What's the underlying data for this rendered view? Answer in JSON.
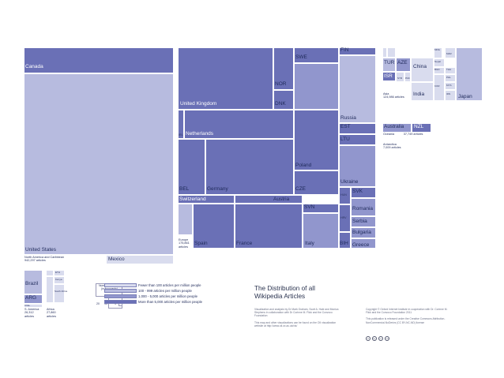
{
  "title": "The Distribution of all Wikipedia Articles",
  "colors": {
    "level1": "#d9dcee",
    "level2": "#b7bbdf",
    "level3": "#9196cd",
    "level4": "#6a70b6"
  },
  "countries": {
    "canada": "Canada",
    "us": "United States",
    "mexico": "Mexico",
    "uk": "United Kingdom",
    "swe": "SWE",
    "fin": "FIN",
    "nor": "NOR",
    "dnk": "DNK",
    "russia": "Russia",
    "est": "EST",
    "ltu": "LTU",
    "irl": "IRL",
    "netherlands": "Netherlands",
    "poland": "Poland",
    "bel": "BEL",
    "germany": "Germany",
    "cze": "CZE",
    "ukraine": "Ukraine",
    "svk": "SVK",
    "hun": "HUN",
    "switzerland": "Switzerland",
    "austria": "Austria",
    "svn": "SVN",
    "romania": "Romania",
    "hrv": "HRV",
    "serbia": "Serbia",
    "bulgaria": "Bulgaria",
    "spain": "Spain",
    "france": "France",
    "italy": "Italy",
    "bih": "BIH",
    "greece": "Greece",
    "tur": "TUR",
    "aze": "AZE",
    "china": "China",
    "isr": "ISR",
    "india": "India",
    "japan": "Japan",
    "australia": "Australia",
    "nzl": "NZL",
    "brazil": "Brazil",
    "arg": "ARG",
    "chile": "Chile",
    "kenya": "Kenya",
    "south_africa": "South Africa",
    "mar": "MAR",
    "eth": "ETH",
    "mng": "MNG",
    "nepal": "Nepal",
    "bgd": "BGD",
    "tha": "THA",
    "syr": "SYR",
    "pak": "PAK",
    "phl": "PHL",
    "mys": "MYS",
    "idn": "IDN",
    "kor": "KOR"
  },
  "regions": {
    "asia_name": "Asia",
    "asia_count": "124,986 articles",
    "oceania_name": "Oceania",
    "oceania_count": "37,749 articles",
    "antarctica_name": "Antarctica",
    "antarctica_count": "7,009 articles",
    "europe_name": "Europe",
    "europe_count": "175,861",
    "europe_unit": "articles",
    "na_name": "North America and Caribbean",
    "na_count": "942,297 articles",
    "sa_name": "S. America",
    "sa_count": "26,312",
    "sa_unit": "articles",
    "africa_name": "Africa",
    "africa_count": "27,860",
    "africa_unit": "articles"
  },
  "legend": {
    "key_title": "Number of articles (in thousands)",
    "scale": [
      "20",
      "10",
      "1"
    ],
    "items": [
      "Fewer than 100 articles per million people",
      "100 - 999 articles per million people",
      "1,000 - 5,000 articles per million people",
      "More than 5,000 articles per million people"
    ]
  },
  "credits": {
    "left_1": "Visualization and analysis by Dr Mark Graham, Scott A. Hale and Monica",
    "left_2": "Stephens in collaboration with Dr Corinne M. Flick and the Convoco",
    "left_3": "Foundation",
    "left_4": "This map and other visualizations can be found on the OII visualization",
    "left_5": "website at http://www.oii.ox.ac.uk/vis/",
    "right_1": "Copyright © Oxford Internet Institute in cooperation with Dr. Corinne M.",
    "right_2": "Flick and the Convoco Foundation 2011",
    "right_3": "This publication is released under the Creative Commons Attribution-",
    "right_4": "NonCommercial-NoDerivs (CC BY-NC-ND) license"
  },
  "cc_icons": [
    "cc",
    "by",
    "nc",
    "nd"
  ]
}
